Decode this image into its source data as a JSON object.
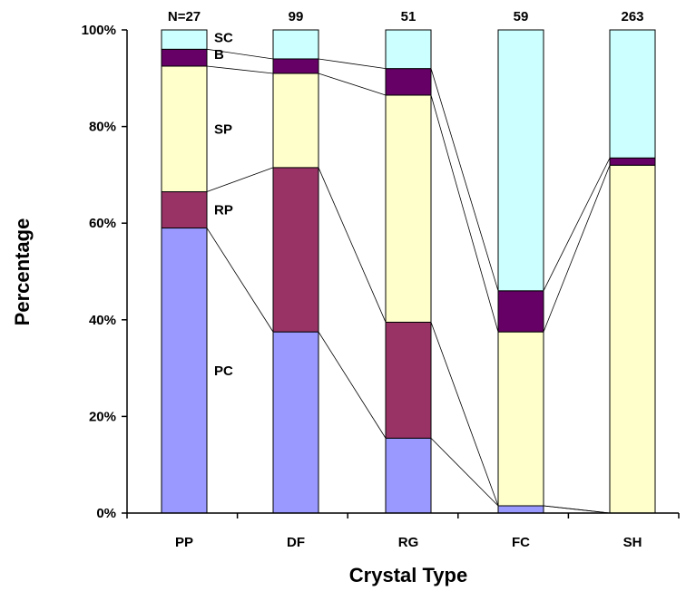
{
  "chart_data": {
    "type": "bar",
    "stacked": true,
    "percent": true,
    "xlabel": "Crystal Type",
    "ylabel": "Percentage",
    "ylim": [
      0,
      100
    ],
    "yticks": [
      "0%",
      "20%",
      "40%",
      "60%",
      "80%",
      "100%"
    ],
    "categories": [
      "PP",
      "DF",
      "RG",
      "FC",
      "SH"
    ],
    "counts": [
      "N=27",
      "99",
      "51",
      "59",
      "263"
    ],
    "series": [
      {
        "name": "PC",
        "color": "#9999ff",
        "values": [
          59,
          37.5,
          15.5,
          1.5,
          0
        ]
      },
      {
        "name": "RP",
        "color": "#993366",
        "values": [
          7.5,
          34,
          24,
          0,
          0
        ]
      },
      {
        "name": "SP",
        "color": "#ffffcc",
        "values": [
          26,
          19.5,
          47,
          36,
          72
        ]
      },
      {
        "name": "B",
        "color": "#660066",
        "values": [
          3.5,
          3,
          5.5,
          8.5,
          1.5
        ]
      },
      {
        "name": "SC",
        "color": "#ccffff",
        "values": [
          4,
          6,
          8,
          54,
          26.5
        ]
      }
    ],
    "legend": "labels on first bar"
  }
}
